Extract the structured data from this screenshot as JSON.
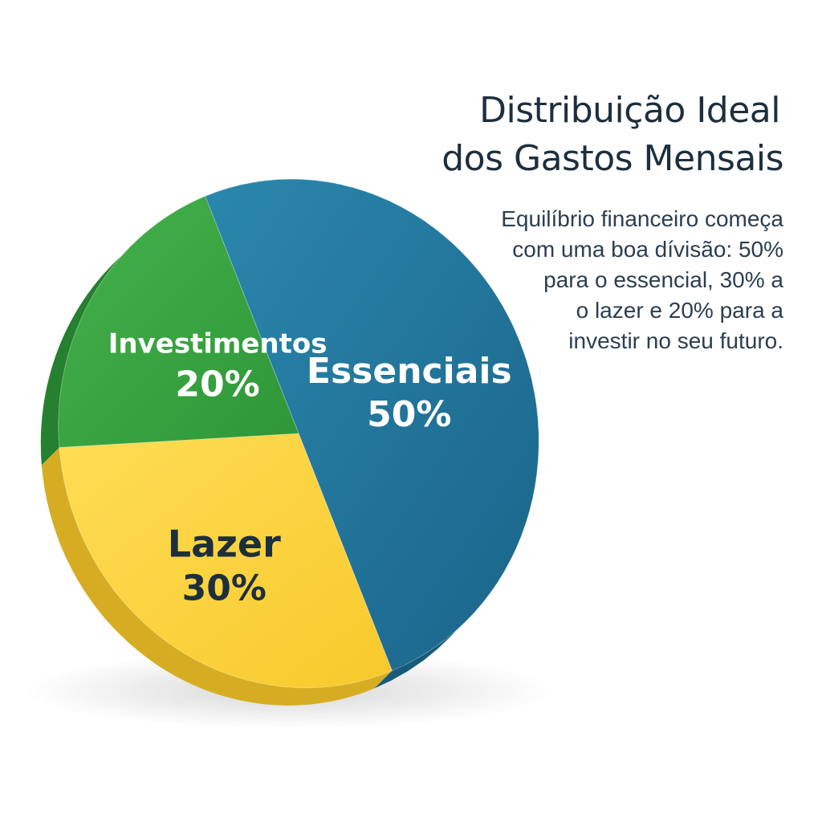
{
  "title_lines": [
    "Distribuição Ideal",
    "dos Gastos Mensais"
  ],
  "subtitle_lines": [
    "Equilíbrio financeiro começa",
    "com uma boa dívisão: 50%",
    "para o essencial, 30% a",
    "o lazer e 20% para a",
    "investir no seu futuro."
  ],
  "chart_data": {
    "type": "pie",
    "style": "3d",
    "slices": [
      {
        "name": "Essenciais",
        "value": 50,
        "value_label": "50%",
        "color": "#22749a",
        "label_color": "#ffffff"
      },
      {
        "name": "Lazer",
        "value": 30,
        "value_label": "30%",
        "color": "#fdd443",
        "label_color": "#1d2f3d"
      },
      {
        "name": "Investimentos",
        "value": 20,
        "value_label": "20%",
        "color": "#3aa845",
        "label_color": "#ffffff"
      }
    ]
  }
}
